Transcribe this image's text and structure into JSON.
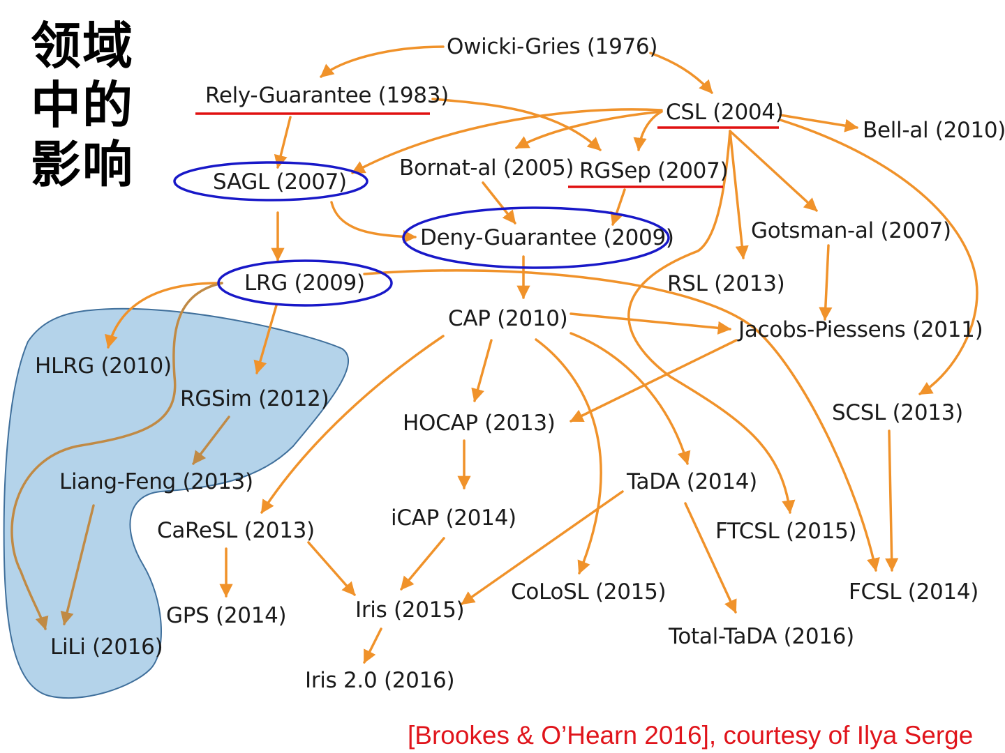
{
  "title_lines": [
    "领域",
    "中的",
    "影响"
  ],
  "nodes": {
    "owicki": "Owicki-Gries (1976)",
    "rely": "Rely-Guarantee (1983)",
    "csl": "CSL (2004)",
    "bell": "Bell-al (2010)",
    "sagl": "SAGL (2007)",
    "bornat": "Bornat-al (2005)",
    "rgsep": "RGSep (2007)",
    "gotsman": "Gotsman-al (2007)",
    "deny": "Deny-Guarantee (2009)",
    "lrg": "LRG (2009)",
    "rsl": "RSL (2013)",
    "cap": "CAP (2010)",
    "jacobs": "Jacobs-Piessens (2011)",
    "hlrg": "HLRG (2010)",
    "rgsim": "RGSim (2012)",
    "hocap": "HOCAP (2013)",
    "scsl": "SCSL (2013)",
    "liang": "Liang-Feng (2013)",
    "tada": "TaDA (2014)",
    "icap": "iCAP (2014)",
    "caresl": "CaReSL (2013)",
    "ftcsl": "FTCSL (2015)",
    "colosl": "CoLoSL (2015)",
    "fcsl": "FCSL (2014)",
    "gps": "GPS (2014)",
    "iris": "Iris (2015)",
    "totaltada": "Total-TaDA (2016)",
    "lili": "LiLi (2016)",
    "iris2": "Iris 2.0 (2016)"
  },
  "citation": "[Brookes & O’Hearn 2016], courtesy of Ilya Serge",
  "colors": {
    "arrow": "#f0922a",
    "arrow_in_region": "#c08a45",
    "ellipse": "#1818c8",
    "underline": "#e01010",
    "region_fill": "#b4d3ea",
    "region_stroke": "#3f6f9b",
    "citation": "#e0141b"
  },
  "highlights": {
    "circled": [
      "SAGL (2007)",
      "Deny-Guarantee (2009)",
      "LRG (2009)"
    ],
    "underlined": [
      "Rely-Guarantee (1983)",
      "CSL (2004)",
      "RGSep (2007)"
    ],
    "shaded_group": [
      "HLRG (2010)",
      "RGSim (2012)",
      "Liang-Feng (2013)",
      "LiLi (2016)"
    ]
  },
  "edges": [
    [
      "Owicki-Gries (1976)",
      "Rely-Guarantee (1983)"
    ],
    [
      "Owicki-Gries (1976)",
      "CSL (2004)"
    ],
    [
      "Rely-Guarantee (1983)",
      "SAGL (2007)"
    ],
    [
      "Rely-Guarantee (1983)",
      "RGSep (2007)"
    ],
    [
      "CSL (2004)",
      "SAGL (2007)"
    ],
    [
      "CSL (2004)",
      "Bornat-al (2005)"
    ],
    [
      "CSL (2004)",
      "RGSep (2007)"
    ],
    [
      "CSL (2004)",
      "Bell-al (2010)"
    ],
    [
      "CSL (2004)",
      "Gotsman-al (2007)"
    ],
    [
      "CSL (2004)",
      "RSL (2013)"
    ],
    [
      "CSL (2004)",
      "SCSL (2013)"
    ],
    [
      "CSL (2004)",
      "FTCSL (2015)"
    ],
    [
      "Bornat-al (2005)",
      "Deny-Guarantee (2009)"
    ],
    [
      "RGSep (2007)",
      "Deny-Guarantee (2009)"
    ],
    [
      "SAGL (2007)",
      "Deny-Guarantee (2009)"
    ],
    [
      "SAGL (2007)",
      "LRG (2009)"
    ],
    [
      "Deny-Guarantee (2009)",
      "CAP (2010)"
    ],
    [
      "Gotsman-al (2007)",
      "Jacobs-Piessens (2011)"
    ],
    [
      "LRG (2009)",
      "HLRG (2010)"
    ],
    [
      "LRG (2009)",
      "RGSim (2012)"
    ],
    [
      "LRG (2009)",
      "LiLi (2016)"
    ],
    [
      "LRG (2009)",
      "FCSL (2014)"
    ],
    [
      "CAP (2010)",
      "Jacobs-Piessens (2011)"
    ],
    [
      "CAP (2010)",
      "HOCAP (2013)"
    ],
    [
      "CAP (2010)",
      "CaReSL (2013)"
    ],
    [
      "CAP (2010)",
      "TaDA (2014)"
    ],
    [
      "CAP (2010)",
      "CoLoSL (2015)"
    ],
    [
      "Jacobs-Piessens (2011)",
      "HOCAP (2013)"
    ],
    [
      "RGSim (2012)",
      "Liang-Feng (2013)"
    ],
    [
      "Liang-Feng (2013)",
      "LiLi (2016)"
    ],
    [
      "HOCAP (2013)",
      "iCAP (2014)"
    ],
    [
      "iCAP (2014)",
      "Iris (2015)"
    ],
    [
      "CaReSL (2013)",
      "GPS (2014)"
    ],
    [
      "CaReSL (2013)",
      "Iris (2015)"
    ],
    [
      "TaDA (2014)",
      "Iris (2015)"
    ],
    [
      "TaDA (2014)",
      "Total-TaDA (2016)"
    ],
    [
      "SCSL (2013)",
      "FCSL (2014)"
    ],
    [
      "Iris (2015)",
      "Iris 2.0 (2016)"
    ]
  ]
}
